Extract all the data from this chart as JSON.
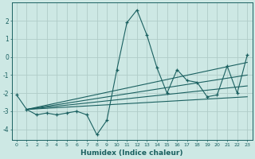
{
  "xlabel": "Humidex (Indice chaleur)",
  "xlim": [
    -0.5,
    23.5
  ],
  "ylim": [
    -4.6,
    3.0
  ],
  "background_color": "#cde8e4",
  "grid_color": "#b0ccc8",
  "line_color": "#1a6060",
  "x_main": [
    0,
    1,
    2,
    3,
    4,
    5,
    6,
    7,
    8,
    9,
    10,
    11,
    12,
    13,
    14,
    15,
    16,
    17,
    18,
    19,
    20,
    21,
    22,
    23
  ],
  "y_main": [
    -2.1,
    -2.9,
    -3.2,
    -3.1,
    -3.2,
    -3.1,
    -3.0,
    -3.2,
    -4.3,
    -3.5,
    -0.7,
    1.9,
    2.6,
    1.2,
    -0.6,
    -2.0,
    -0.7,
    -1.3,
    -1.4,
    -2.2,
    -2.1,
    -0.5,
    -2.0,
    0.1
  ],
  "ref_lines": [
    {
      "x": [
        1,
        23
      ],
      "y": [
        -2.9,
        -2.2
      ]
    },
    {
      "x": [
        1,
        23
      ],
      "y": [
        -2.9,
        -1.6
      ]
    },
    {
      "x": [
        1,
        23
      ],
      "y": [
        -2.9,
        -1.0
      ]
    },
    {
      "x": [
        1,
        23
      ],
      "y": [
        -2.9,
        -0.3
      ]
    }
  ],
  "yticks": [
    -4,
    -3,
    -2,
    -1,
    0,
    1,
    2
  ],
  "xticks": [
    0,
    1,
    2,
    3,
    4,
    5,
    6,
    7,
    8,
    9,
    10,
    11,
    12,
    13,
    14,
    15,
    16,
    17,
    18,
    19,
    20,
    21,
    22,
    23
  ]
}
